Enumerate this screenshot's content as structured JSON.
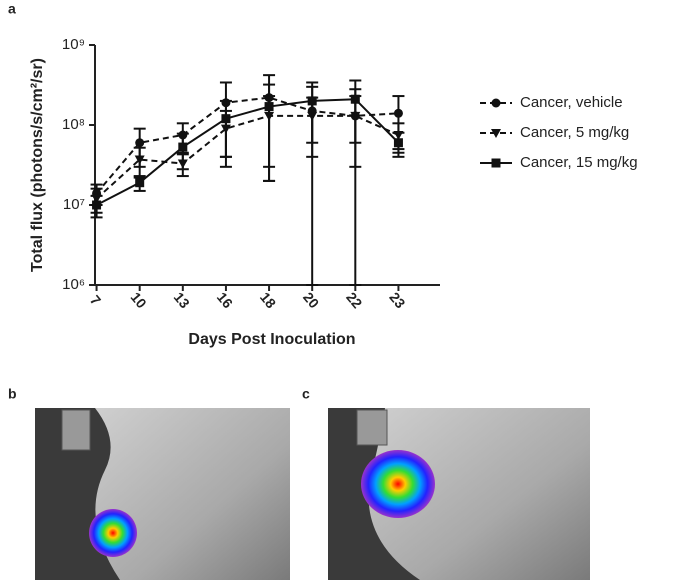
{
  "panel_labels": [
    "a",
    "b",
    "c"
  ],
  "chart_data": {
    "type": "line",
    "xlabel": "Days Post Inoculation",
    "ylabel": "Total flux (photons/s/cm²/sr)",
    "categories": [
      "7",
      "10",
      "13",
      "16",
      "18",
      "20",
      "22",
      "23"
    ],
    "log_y": true,
    "ylim": [
      1000000,
      1000000000
    ],
    "yticks": [
      {
        "value": 1000000,
        "label": "10⁶"
      },
      {
        "value": 10000000,
        "label": "10⁷"
      },
      {
        "value": 100000000,
        "label": "10⁸"
      },
      {
        "value": 1000000000,
        "label": "10⁹"
      }
    ],
    "legend": "right",
    "series": [
      {
        "name": "Cancer, vehicle",
        "color": "#111111",
        "marker": "circle",
        "dashed": true,
        "values": [
          14000000,
          60000000,
          75000000,
          190000000,
          220000000,
          150000000,
          130000000,
          140000000
        ],
        "errors": [
          4000000,
          30000000,
          30000000,
          150000000,
          200000000,
          150000000,
          150000000,
          90000000
        ]
      },
      {
        "name": "Cancer, 5 mg/kg",
        "color": "#111111",
        "marker": "triangle",
        "dashed": true,
        "values": [
          12000000,
          37000000,
          33000000,
          90000000,
          130000000,
          130000000,
          130000000,
          75000000
        ],
        "errors": [
          4000000,
          15000000,
          10000000,
          60000000,
          100000000,
          90000000,
          100000000,
          30000000
        ]
      },
      {
        "name": "Cancer, 15 mg/kg",
        "color": "#111111",
        "marker": "square",
        "dashed": false,
        "values": [
          10000000,
          19000000,
          53000000,
          120000000,
          170000000,
          200000000,
          210000000,
          60000000
        ],
        "errors": [
          3000000,
          4000000,
          25000000,
          80000000,
          150000000,
          140000000,
          150000000,
          20000000
        ]
      }
    ]
  }
}
